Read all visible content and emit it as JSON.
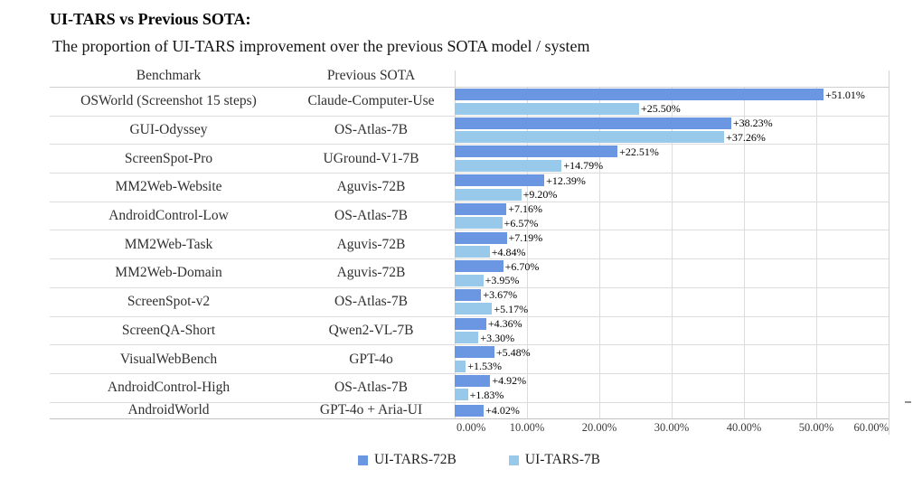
{
  "header": {
    "title": "UI-TARS vs Previous SOTA:",
    "subtitle": "The proportion of UI-TARS improvement over the previous SOTA model / system"
  },
  "table": {
    "col_benchmark": "Benchmark",
    "col_previous_sota": "Previous SOTA"
  },
  "chart_data": {
    "type": "bar",
    "orientation": "horizontal",
    "title": "UI-TARS vs Previous SOTA:",
    "subtitle": "The proportion of UI-TARS improvement over the previous SOTA model / system",
    "x_axis": {
      "min": 0,
      "max": 60,
      "unit": "%",
      "ticks": [
        "0.00%",
        "10.00%",
        "20.00%",
        "30.00%",
        "40.00%",
        "50.00%",
        "60.00%"
      ],
      "grid": true
    },
    "legend_position": "bottom",
    "legend": [
      {
        "name": "UI-TARS-72B",
        "color": "#6A96E2"
      },
      {
        "name": "UI-TARS-7B",
        "color": "#98C8EA"
      }
    ],
    "rows": [
      {
        "benchmark": "OSWorld (Screenshot 15 steps)",
        "previous_sota": "Claude-Computer-Use",
        "ui_tars_72b": 51.01,
        "ui_tars_7b": 25.5,
        "label_72b": "+51.01%",
        "label_7b": "+25.50%"
      },
      {
        "benchmark": "GUI-Odyssey",
        "previous_sota": "OS-Atlas-7B",
        "ui_tars_72b": 38.23,
        "ui_tars_7b": 37.26,
        "label_72b": "+38.23%",
        "label_7b": "+37.26%"
      },
      {
        "benchmark": "ScreenSpot-Pro",
        "previous_sota": "UGround-V1-7B",
        "ui_tars_72b": 22.51,
        "ui_tars_7b": 14.79,
        "label_72b": "+22.51%",
        "label_7b": "+14.79%"
      },
      {
        "benchmark": "MM2Web-Website",
        "previous_sota": "Aguvis-72B",
        "ui_tars_72b": 12.39,
        "ui_tars_7b": 9.2,
        "label_72b": "+12.39%",
        "label_7b": "+9.20%"
      },
      {
        "benchmark": "AndroidControl-Low",
        "previous_sota": "OS-Atlas-7B",
        "ui_tars_72b": 7.16,
        "ui_tars_7b": 6.57,
        "label_72b": "+7.16%",
        "label_7b": "+6.57%"
      },
      {
        "benchmark": "MM2Web-Task",
        "previous_sota": "Aguvis-72B",
        "ui_tars_72b": 7.19,
        "ui_tars_7b": 4.84,
        "label_72b": "+7.19%",
        "label_7b": "+4.84%"
      },
      {
        "benchmark": "MM2Web-Domain",
        "previous_sota": "Aguvis-72B",
        "ui_tars_72b": 6.7,
        "ui_tars_7b": 3.95,
        "label_72b": "+6.70%",
        "label_7b": "+3.95%"
      },
      {
        "benchmark": "ScreenSpot-v2",
        "previous_sota": "OS-Atlas-7B",
        "ui_tars_72b": 3.67,
        "ui_tars_7b": 5.17,
        "label_72b": "+3.67%",
        "label_7b": "+5.17%"
      },
      {
        "benchmark": "ScreenQA-Short",
        "previous_sota": "Qwen2-VL-7B",
        "ui_tars_72b": 4.36,
        "ui_tars_7b": 3.3,
        "label_72b": "+4.36%",
        "label_7b": "+3.30%"
      },
      {
        "benchmark": "VisualWebBench",
        "previous_sota": "GPT-4o",
        "ui_tars_72b": 5.48,
        "ui_tars_7b": 1.53,
        "label_72b": "+5.48%",
        "label_7b": "+1.53%"
      },
      {
        "benchmark": "AndroidControl-High",
        "previous_sota": "OS-Atlas-7B",
        "ui_tars_72b": 4.92,
        "ui_tars_7b": 1.83,
        "label_72b": "+4.92%",
        "label_7b": "+1.83%"
      },
      {
        "benchmark": "AndroidWorld",
        "previous_sota": "GPT-4o + Aria-UI",
        "ui_tars_72b": 4.02,
        "ui_tars_7b": null,
        "label_72b": "+4.02%",
        "label_7b": null
      }
    ]
  }
}
